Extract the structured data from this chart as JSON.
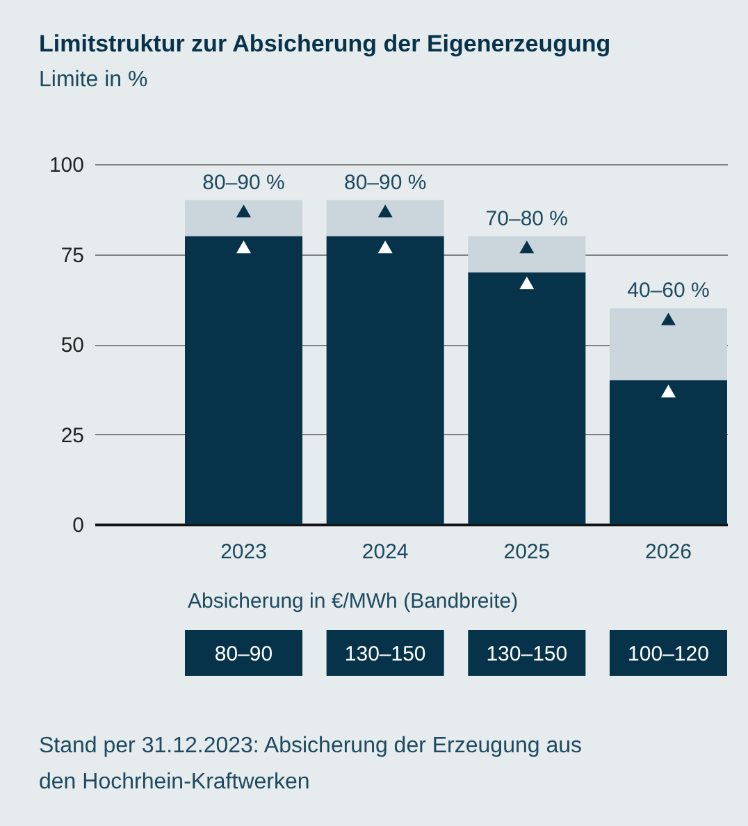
{
  "chart_data": {
    "type": "bar",
    "stacked": true,
    "title": "Limitstruktur zur Absicherung der Eigenerzeugung",
    "subtitle": "Limite in %",
    "categories": [
      "2023",
      "2024",
      "2025",
      "2026"
    ],
    "series": [
      {
        "color": "#06334a",
        "values": [
          80,
          80,
          70,
          40
        ]
      },
      {
        "color": "#cbd6dc",
        "values": [
          10,
          10,
          10,
          20
        ]
      },
      {
        "type": "scatter",
        "marker": "triangle",
        "color": "#ffffff",
        "values": [
          77,
          77,
          67,
          37
        ]
      },
      {
        "type": "scatter",
        "marker": "triangle",
        "color": "#06334a",
        "values": [
          87,
          87,
          77,
          57
        ]
      }
    ],
    "ylim": [
      0,
      100
    ],
    "yticks": [
      0,
      25,
      50,
      75,
      100
    ],
    "grid": "y",
    "annotations": [
      {
        "text": "80–90 %",
        "x": "2023",
        "y": 90
      },
      {
        "text": "80–90 %",
        "x": "2024",
        "y": 90
      },
      {
        "text": "70–80 %",
        "x": "2025",
        "y": 80
      },
      {
        "text": "40–60 %",
        "x": "2026",
        "y": 60
      },
      "Absicherung in €/MWh (Bandbreite)",
      "80–90",
      "130–150",
      "130–150",
      "100–120",
      "Stand per 31.12.2023: Absicherung der Erzeugung aus den Hochrhein-Kraftwerken"
    ]
  }
}
